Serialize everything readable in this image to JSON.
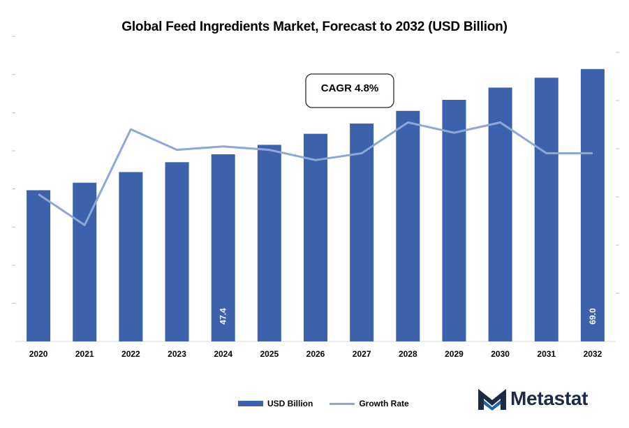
{
  "chart_data": {
    "type": "bar",
    "title": "Global Feed Ingredients Market, Forecast to 2032 (USD Billion)",
    "xlabel": "",
    "ylabel": "",
    "categories": [
      "2020",
      "2021",
      "2022",
      "2023",
      "2024",
      "2025",
      "2026",
      "2027",
      "2028",
      "2029",
      "2030",
      "2031",
      "2032"
    ],
    "series": [
      {
        "name": "USD Billion",
        "type": "bar",
        "color": "#3b62ab",
        "values": [
          38.3,
          40.2,
          42.9,
          45.4,
          47.4,
          49.8,
          52.6,
          55.2,
          58.4,
          61.2,
          64.3,
          66.8,
          69.0
        ],
        "labels": [
          "",
          "",
          "",
          "",
          "47.4",
          "",
          "",
          "",
          "",
          "",
          "",
          "",
          "69.0"
        ]
      },
      {
        "name": "Growth Rate",
        "type": "line",
        "color": "#8fa6d8",
        "values": [
          4.3,
          3.4,
          6.2,
          5.6,
          5.7,
          5.6,
          5.3,
          5.5,
          6.4,
          6.1,
          6.4,
          5.5,
          5.5
        ]
      }
    ],
    "ylim": [
      0,
      78
    ],
    "y2lim": [
      0,
      9
    ],
    "grid": false,
    "legend": "bottom",
    "annotation": "CAGR 4.8%"
  },
  "brand": {
    "name": "Metastat",
    "accent": "#1e63b4",
    "dark": "#1c2a44"
  }
}
